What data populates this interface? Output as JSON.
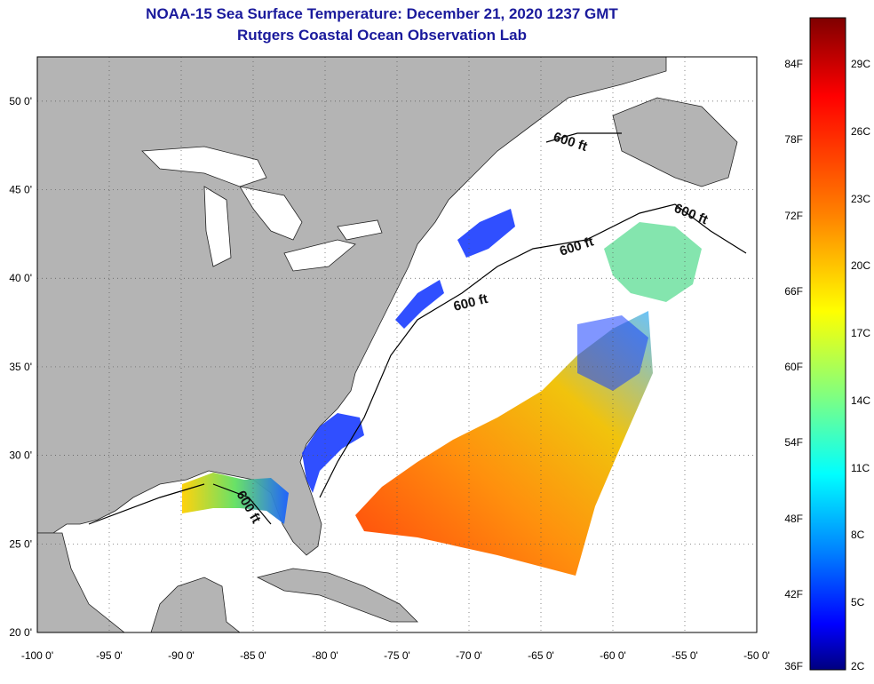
{
  "header": {
    "title": "NOAA-15 Sea Surface Temperature:  December 21, 2020 1237 GMT",
    "subtitle": "Rutgers Coastal Ocean Observation Lab"
  },
  "map": {
    "lon_range": [
      -100,
      -50
    ],
    "lat_range": [
      20,
      52.5
    ],
    "lon_ticks": [
      "-100 0'",
      "-95 0'",
      "-90 0'",
      "-85 0'",
      "-80 0'",
      "-75 0'",
      "-70 0'",
      "-65 0'",
      "-60 0'",
      "-55 0'",
      "-50 0'"
    ],
    "lat_ticks": [
      "20 0'",
      "25 0'",
      "30 0'",
      "35 0'",
      "40 0'",
      "45 0'",
      "50 0'"
    ],
    "grid": "dotted",
    "land_color": "#b4b4b4",
    "water_color": "#ffffff",
    "contour_labels": [
      "600 ft",
      "600 ft",
      "600 ft",
      "600 ft",
      "600 ft"
    ]
  },
  "colorbar": {
    "fahrenheit_labels": [
      "84F",
      "78F",
      "72F",
      "66F",
      "60F",
      "54F",
      "48F",
      "42F",
      "36F"
    ],
    "celsius_labels": [
      "29C",
      "26C",
      "23C",
      "20C",
      "17C",
      "14C",
      "11C",
      "8C",
      "5C",
      "2C"
    ],
    "colors": [
      "#7f0000",
      "#ff0000",
      "#ff7f00",
      "#ffff00",
      "#7fff7f",
      "#00ffff",
      "#007fff",
      "#0000ff",
      "#00007f"
    ]
  }
}
